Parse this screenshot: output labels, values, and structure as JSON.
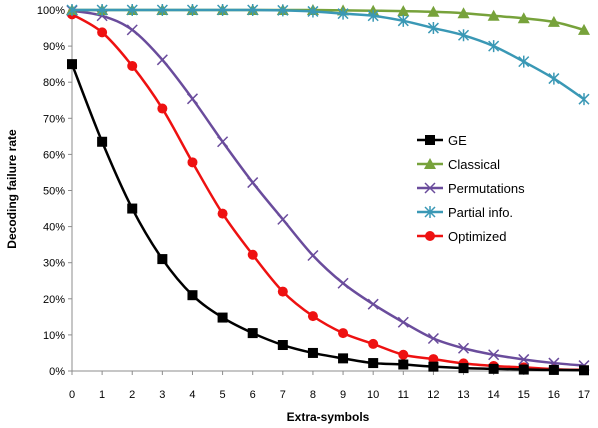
{
  "chart_data": {
    "type": "line",
    "title": "",
    "xlabel": "Extra-symbols",
    "ylabel": "Decoding failure rate",
    "xlim": [
      0,
      17
    ],
    "ylim": [
      0,
      100
    ],
    "x": [
      0,
      1,
      2,
      3,
      4,
      5,
      6,
      7,
      8,
      9,
      10,
      11,
      12,
      13,
      14,
      15,
      16,
      17
    ],
    "x_tick_labels": [
      "0",
      "1",
      "2",
      "3",
      "4",
      "5",
      "6",
      "7",
      "8",
      "9",
      "10",
      "11",
      "12",
      "13",
      "14",
      "15",
      "16",
      "17"
    ],
    "y_ticks": [
      0,
      10,
      20,
      30,
      40,
      50,
      60,
      70,
      80,
      90,
      100
    ],
    "y_tick_labels": [
      "0%",
      "10%",
      "20%",
      "30%",
      "40%",
      "50%",
      "60%",
      "70%",
      "80%",
      "90%",
      "100%"
    ],
    "grid": false,
    "legend_position": "right",
    "series": [
      {
        "name": "GE",
        "color": "#000000",
        "marker": "square",
        "values": [
          85,
          63.5,
          45,
          31,
          21,
          14.8,
          10.5,
          7.2,
          5,
          3.5,
          2.2,
          1.8,
          1.2,
          0.8,
          0.6,
          0.4,
          0.3,
          0.2
        ]
      },
      {
        "name": "Classical",
        "color": "#77a23b",
        "marker": "triangle",
        "values": [
          100,
          100,
          100,
          100,
          100,
          100,
          100,
          100,
          100,
          99.9,
          99.8,
          99.7,
          99.5,
          99.1,
          98.4,
          97.7,
          96.7,
          94.5
        ]
      },
      {
        "name": "Permutations",
        "color": "#6a4c9c",
        "marker": "x",
        "values": [
          99.8,
          98.4,
          94.5,
          86.2,
          75.4,
          63.5,
          52.2,
          42,
          32,
          24.3,
          18.5,
          13.5,
          9,
          6.3,
          4.5,
          3.2,
          2.2,
          1.5
        ]
      },
      {
        "name": "Partial info.",
        "color": "#3a98b5",
        "marker": "star",
        "values": [
          100,
          100,
          100,
          100,
          100,
          100,
          100,
          99.9,
          99.6,
          99,
          98.4,
          97,
          95,
          93,
          90,
          85.7,
          81,
          75.3
        ]
      },
      {
        "name": "Optimized",
        "color": "#ee1111",
        "marker": "circle",
        "values": [
          98.8,
          93.8,
          84.5,
          72.7,
          57.8,
          43.6,
          32.2,
          22,
          15.2,
          10.5,
          7.5,
          4.5,
          3.3,
          2.1,
          1.4,
          1,
          0.5,
          0.3
        ]
      }
    ]
  }
}
